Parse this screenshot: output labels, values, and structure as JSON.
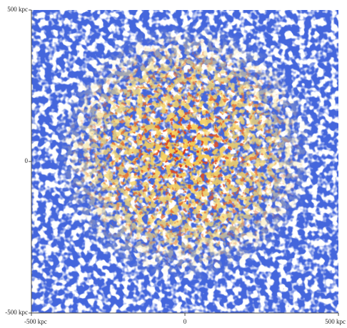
{
  "chart_data": {
    "type": "density",
    "xlim": [
      -500,
      500
    ],
    "ylim": [
      -500,
      500
    ],
    "xticks": [
      {
        "value": -500,
        "label": "-500 kpc"
      },
      0,
      {
        "value": 500,
        "label": "500 kpc"
      }
    ],
    "yticks": [
      {
        "value": -500,
        "label": "-500 kpc"
      },
      0,
      {
        "value": 500,
        "label": "500 kpc"
      }
    ]
  }
}
